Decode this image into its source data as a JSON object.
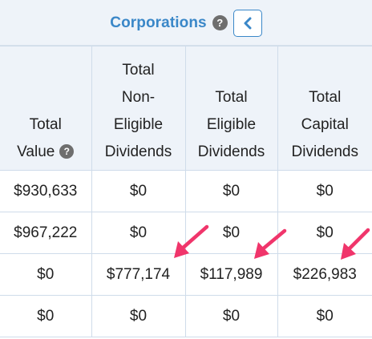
{
  "header": {
    "title": "Corporations",
    "help_glyph": "?",
    "collapse_icon": "chevron-left-icon"
  },
  "table": {
    "columns": [
      {
        "label_lines": [
          "Total",
          "Value"
        ],
        "has_help": true
      },
      {
        "label_lines": [
          "Total",
          "Non-",
          "Eligible",
          "Dividends"
        ],
        "has_help": false
      },
      {
        "label_lines": [
          "Total",
          "Eligible",
          "Dividends"
        ],
        "has_help": false
      },
      {
        "label_lines": [
          "Total",
          "Capital",
          "Dividends"
        ],
        "has_help": false
      }
    ],
    "rows": [
      [
        "$930,633",
        "$0",
        "$0",
        "$0"
      ],
      [
        "$967,222",
        "$0",
        "$0",
        "$0"
      ],
      [
        "$0",
        "$777,174",
        "$117,989",
        "$226,983"
      ],
      [
        "$0",
        "$0",
        "$0",
        "$0"
      ]
    ]
  },
  "annotations": {
    "arrow_color": "#f0356b",
    "arrow_icon": "pointer-arrow-icon"
  },
  "colors": {
    "accent": "#3a87c8",
    "header_bg": "#eef3f9",
    "grid": "#cfdcea",
    "help_icon": "#6e6e6e"
  }
}
